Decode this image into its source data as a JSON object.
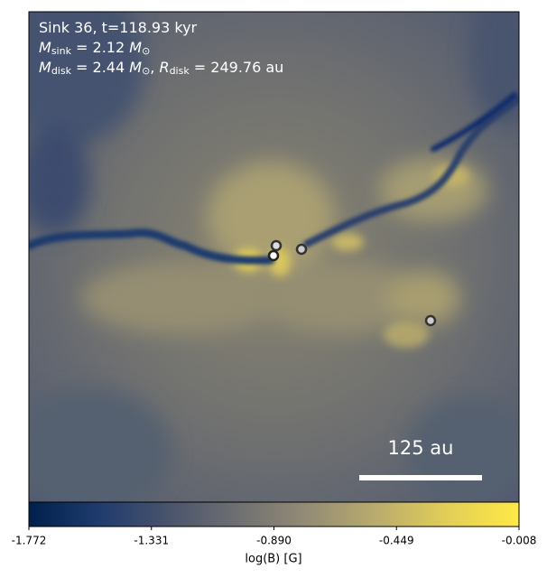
{
  "chart_data": {
    "type": "heatmap",
    "annotation_lines": [
      [
        {
          "t": "Sink 36, t=118.93 kyr"
        }
      ],
      [
        {
          "t": "M",
          "italic": true
        },
        {
          "t": "sink",
          "sub": true
        },
        {
          "t": " = 2.12 "
        },
        {
          "t": "M",
          "italic": true
        },
        {
          "t": "⊙",
          "sub": true
        }
      ],
      [
        {
          "t": "M",
          "italic": true
        },
        {
          "t": "disk",
          "sub": true
        },
        {
          "t": " = 2.44 "
        },
        {
          "t": "M",
          "italic": true
        },
        {
          "t": "⊙",
          "sub": true
        },
        {
          "t": ", "
        },
        {
          "t": "R",
          "italic": true
        },
        {
          "t": "disk",
          "sub": true
        },
        {
          "t": " = 249.76 au"
        }
      ]
    ],
    "scale_bar_label": "125 au",
    "colormap": "cividis",
    "colorbar_label": "log(B) [G]",
    "clim": [
      -1.772,
      -0.008
    ],
    "cticks": [
      -1.772,
      -1.331,
      {
        "value": -0.89,
        "label": "-0.890"
      },
      -0.449,
      -0.008
    ]
  }
}
